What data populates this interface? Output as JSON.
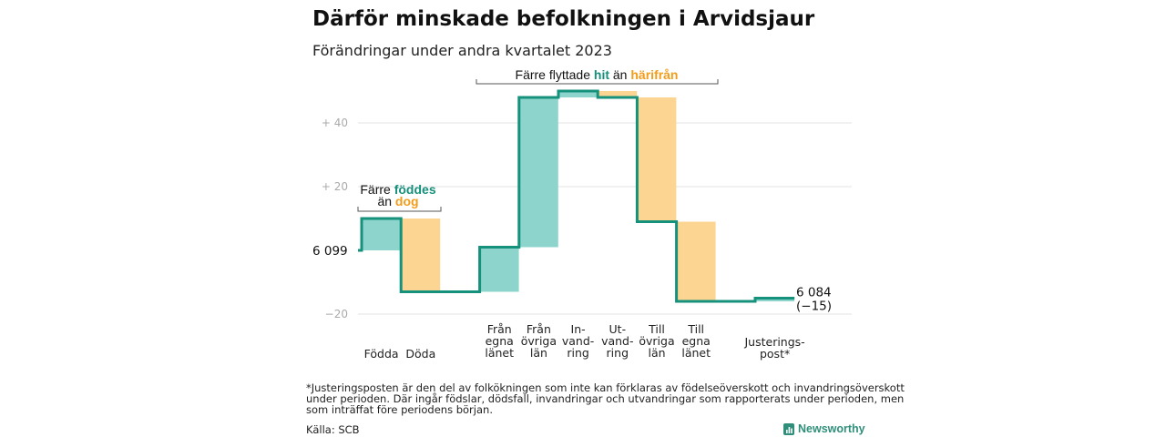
{
  "title": "Därför minskade befolkningen i Arvidsjaur",
  "subtitle": "Förändringar under andra kvartalet 2023",
  "colors": {
    "increase": "#8dd5cc",
    "decrease": "#fcd592",
    "step_line": "#15917c",
    "teal_text": "#16907c",
    "orange_text": "#f39c1a",
    "grid": "#e3e3e3"
  },
  "chart_data": {
    "type": "waterfall",
    "start_value": 6099,
    "start_label": "6 099",
    "end_value": 6084,
    "end_label": "6 084",
    "end_change_label": "(−15)",
    "y_axis": {
      "min": -24,
      "max": 64,
      "ticks": [
        40,
        20,
        -20
      ],
      "tick_labels": [
        "+ 40",
        "+ 20",
        "−20"
      ]
    },
    "gridlines": true,
    "steps": [
      {
        "label_lines": [
          "Födda"
        ],
        "change": 10,
        "kind": "increase"
      },
      {
        "label_lines": [
          "Döda"
        ],
        "change": -23,
        "kind": "decrease"
      },
      {
        "label_lines": [
          ""
        ],
        "change": 0,
        "kind": "none"
      },
      {
        "label_lines": [
          "Från",
          "egna",
          "länet"
        ],
        "change": 14,
        "kind": "increase"
      },
      {
        "label_lines": [
          "Från",
          "övriga",
          "län"
        ],
        "change": 47,
        "kind": "increase"
      },
      {
        "label_lines": [
          "In-",
          "vand-",
          "ring"
        ],
        "change": 2,
        "kind": "increase"
      },
      {
        "label_lines": [
          "Ut-",
          "vand-",
          "ring"
        ],
        "change": -2,
        "kind": "decrease"
      },
      {
        "label_lines": [
          "Till",
          "övriga",
          "län"
        ],
        "change": -39,
        "kind": "decrease"
      },
      {
        "label_lines": [
          "Till",
          "egna",
          "länet"
        ],
        "change": -25,
        "kind": "decrease"
      },
      {
        "label_lines": [
          ""
        ],
        "change": 0,
        "kind": "none"
      },
      {
        "label_lines": [
          "Justerings-",
          "post*"
        ],
        "change": 1,
        "kind": "increase"
      }
    ]
  },
  "annotations": {
    "births": {
      "line1": "Färre",
      "line1_bold": "föddes",
      "line2": "än",
      "line2_bold": "dog"
    },
    "migration": {
      "text1": "Färre flyttade",
      "bold1": "hit",
      "text2": "än",
      "bold2": "härifrån"
    }
  },
  "footnote": [
    "*Justeringsposten är den del av folkökningen som inte kan förklaras av födelseöverskott och invandringsöverskott",
    "under perioden. Där ingår födslar, dödsfall, invandringar och utvandringar som rapporterats under perioden, men",
    "som inträffat före periodens början."
  ],
  "source": "Källa: SCB",
  "brand": "Newsworthy"
}
